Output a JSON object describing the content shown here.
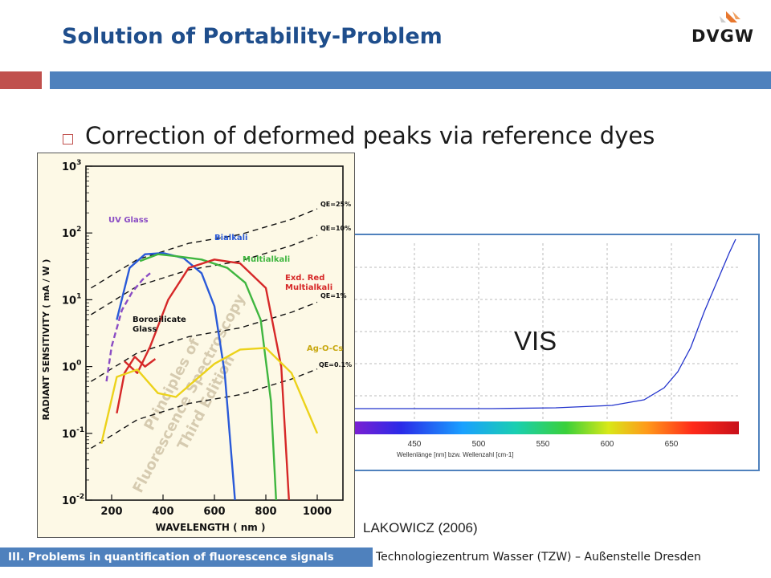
{
  "slide": {
    "title": "Solution of Portability-Problem",
    "bullet": "Correction of deformed peaks via reference dyes",
    "citation": "LAKOWICZ (2006)",
    "footer_left": "III. Problems in quantification of fluorescence signals",
    "footer_right": "Technologiezentrum Wasser (TZW) – Außenstelle Dresden",
    "logo_text": "DVGW",
    "colors": {
      "title": "#1f4e8c",
      "accent_red": "#c0504d",
      "accent_blue": "#4f81bd"
    }
  },
  "vis_chart": {
    "label": "VIS",
    "x_ticks": [
      "450",
      "500",
      "550",
      "600",
      "650"
    ],
    "xlabel": "Wellenlänge [nm] bzw. Wellenzahl [cm-1]"
  },
  "chart_data": {
    "type": "line",
    "xlabel": "WAVELENGTH ( nm )",
    "ylabel": "RADIANT SENSITIVITY ( mA / W )",
    "x_ticks": [
      "200",
      "400",
      "600",
      "800",
      "1000"
    ],
    "xlim": [
      100,
      1100
    ],
    "ylim": [
      0.01,
      1000
    ],
    "y_scale": "log",
    "y_ticks": [
      {
        "base": "10",
        "exp": "3"
      },
      {
        "base": "10",
        "exp": "2"
      },
      {
        "base": "10",
        "exp": "1"
      },
      {
        "base": "10",
        "exp": "0"
      },
      {
        "base": "10",
        "exp": "-1"
      },
      {
        "base": "10",
        "exp": "-2"
      }
    ],
    "qe_lines": [
      {
        "name": "QE=25%",
        "x": [
          120,
          300,
          500,
          700,
          900,
          1000
        ],
        "y": [
          15,
          40,
          70,
          95,
          160,
          230
        ]
      },
      {
        "name": "QE=10%",
        "x": [
          120,
          300,
          500,
          700,
          900,
          1000
        ],
        "y": [
          6,
          16,
          28,
          38,
          65,
          92
        ]
      },
      {
        "name": "QE=1%",
        "x": [
          120,
          300,
          500,
          700,
          900,
          1000
        ],
        "y": [
          0.6,
          1.6,
          2.8,
          3.8,
          6.5,
          9.2
        ]
      },
      {
        "name": "QE=0.1%",
        "x": [
          120,
          300,
          500,
          700,
          900,
          1000
        ],
        "y": [
          0.06,
          0.16,
          0.28,
          0.38,
          0.65,
          0.92
        ]
      }
    ],
    "series": [
      {
        "name": "UV Glass",
        "color": "#8a4cc4",
        "dash": true,
        "x": [
          180,
          200,
          240,
          280,
          320,
          350
        ],
        "y": [
          0.6,
          2,
          7,
          13,
          20,
          25
        ]
      },
      {
        "name": "Bialkali",
        "color": "#2a5ad8",
        "x": [
          220,
          270,
          330,
          400,
          480,
          550,
          600,
          640,
          680
        ],
        "y": [
          5,
          30,
          48,
          50,
          42,
          25,
          8,
          0.8,
          0.01
        ]
      },
      {
        "name": "Multialkali",
        "color": "#3fb63f",
        "x": [
          310,
          380,
          450,
          550,
          650,
          720,
          780,
          820,
          840
        ],
        "y": [
          38,
          48,
          45,
          40,
          30,
          18,
          5,
          0.3,
          0.01
        ]
      },
      {
        "name": "Exd. Red Multialkali",
        "color": "#d62828",
        "x": [
          250,
          300,
          350,
          420,
          500,
          600,
          700,
          800,
          860,
          890
        ],
        "y": [
          1.2,
          0.8,
          2,
          10,
          30,
          40,
          35,
          15,
          1,
          0.01
        ]
      },
      {
        "name": "Borosilicate Glass",
        "color": "#d62828",
        "x": [
          220,
          250,
          290,
          330,
          370
        ],
        "y": [
          0.2,
          0.8,
          1.4,
          1,
          1.3
        ]
      },
      {
        "name": "Ag-O-Cs",
        "color": "#ecd21a",
        "x": [
          160,
          220,
          300,
          380,
          450,
          520,
          600,
          700,
          800,
          900,
          1000
        ],
        "y": [
          0.07,
          0.7,
          0.9,
          0.4,
          0.35,
          0.6,
          1.1,
          1.8,
          1.9,
          0.8,
          0.1
        ]
      }
    ],
    "annotations": [
      "UV Glass",
      "Bialkali",
      "Multialkali",
      "Exd. Red",
      "Multialkali",
      "Borosilicate",
      "Glass",
      "Ag-O-Cs",
      "QE=25%",
      "QE=10%",
      "QE=1%",
      "QE=0.1%"
    ],
    "watermark": [
      "Principles of",
      "Fluorescence Spectroscopy",
      "Third Edition"
    ]
  }
}
